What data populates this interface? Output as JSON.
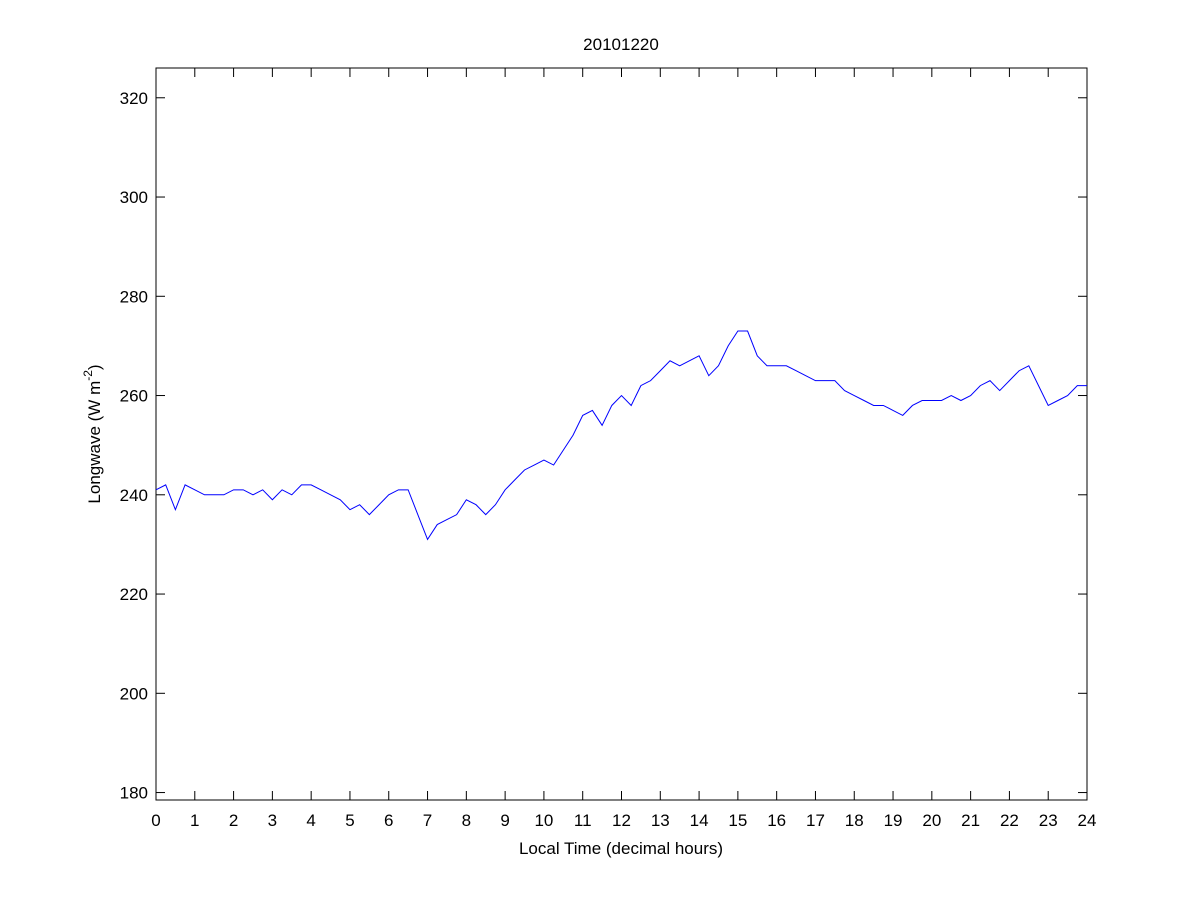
{
  "chart_data": {
    "type": "line",
    "title": "20101220",
    "xlabel": "Local Time (decimal hours)",
    "ylabel": [
      "Longwave (W m",
      "-2",
      ")"
    ],
    "x": [
      0,
      0.25,
      0.5,
      0.75,
      1,
      1.25,
      1.5,
      1.75,
      2,
      2.25,
      2.5,
      2.75,
      3,
      3.25,
      3.5,
      3.75,
      4,
      4.25,
      4.5,
      4.75,
      5,
      5.25,
      5.5,
      5.75,
      6,
      6.25,
      6.5,
      6.75,
      7,
      7.25,
      7.5,
      7.75,
      8,
      8.25,
      8.5,
      8.75,
      9,
      9.25,
      9.5,
      9.75,
      10,
      10.25,
      10.5,
      10.75,
      11,
      11.25,
      11.5,
      11.75,
      12,
      12.25,
      12.5,
      12.75,
      13,
      13.25,
      13.5,
      13.75,
      14,
      14.25,
      14.5,
      14.75,
      15,
      15.25,
      15.5,
      15.75,
      16,
      16.25,
      16.5,
      16.75,
      17,
      17.25,
      17.5,
      17.75,
      18,
      18.25,
      18.5,
      18.75,
      19,
      19.25,
      19.5,
      19.75,
      20,
      20.25,
      20.5,
      20.75,
      21,
      21.25,
      21.5,
      21.75,
      22,
      22.25,
      22.5,
      22.75,
      23,
      23.25,
      23.5,
      23.75,
      24
    ],
    "series": [
      {
        "name": "Longwave",
        "color": "#0000ff",
        "values": [
          241,
          242,
          237,
          242,
          241,
          240,
          240,
          240,
          241,
          241,
          240,
          241,
          239,
          241,
          240,
          242,
          242,
          241,
          240,
          239,
          237,
          238,
          236,
          238,
          240,
          241,
          241,
          236,
          231,
          234,
          235,
          236,
          239,
          238,
          236,
          238,
          241,
          243,
          245,
          246,
          247,
          246,
          249,
          252,
          256,
          257,
          254,
          258,
          260,
          258,
          262,
          263,
          265,
          267,
          266,
          267,
          268,
          264,
          266,
          270,
          273,
          273,
          268,
          266,
          266,
          266,
          265,
          264,
          263,
          263,
          263,
          261,
          260,
          259,
          258,
          258,
          257,
          256,
          258,
          259,
          259,
          259,
          260,
          259,
          260,
          262,
          263,
          261,
          263,
          265,
          266,
          262,
          258,
          259,
          260,
          262,
          262
        ]
      }
    ],
    "xlim": [
      0,
      24
    ],
    "ylim": [
      178.5,
      326
    ],
    "xticks": [
      0,
      1,
      2,
      3,
      4,
      5,
      6,
      7,
      8,
      9,
      10,
      11,
      12,
      13,
      14,
      15,
      16,
      17,
      18,
      19,
      20,
      21,
      22,
      23,
      24
    ],
    "yticks": [
      180,
      200,
      220,
      240,
      260,
      280,
      300,
      320
    ]
  }
}
